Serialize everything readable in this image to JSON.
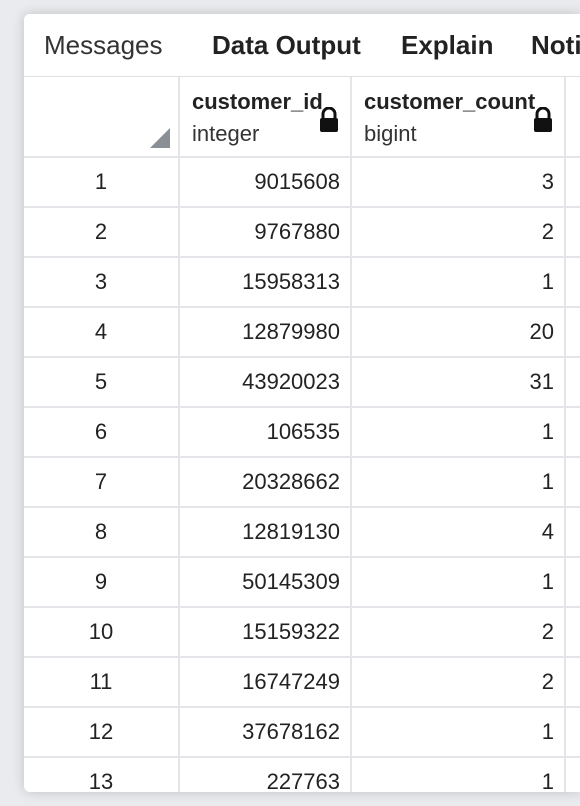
{
  "tabs": {
    "messages": "Messages",
    "data_output": "Data Output",
    "explain": "Explain",
    "notifications": "Noti"
  },
  "columns": [
    {
      "name": "customer_id",
      "type": "integer"
    },
    {
      "name": "customer_count",
      "type": "bigint"
    }
  ],
  "rows": [
    {
      "n": "1",
      "customer_id": "9015608",
      "customer_count": "3"
    },
    {
      "n": "2",
      "customer_id": "9767880",
      "customer_count": "2"
    },
    {
      "n": "3",
      "customer_id": "15958313",
      "customer_count": "1"
    },
    {
      "n": "4",
      "customer_id": "12879980",
      "customer_count": "20"
    },
    {
      "n": "5",
      "customer_id": "43920023",
      "customer_count": "31"
    },
    {
      "n": "6",
      "customer_id": "106535",
      "customer_count": "1"
    },
    {
      "n": "7",
      "customer_id": "20328662",
      "customer_count": "1"
    },
    {
      "n": "8",
      "customer_id": "12819130",
      "customer_count": "4"
    },
    {
      "n": "9",
      "customer_id": "50145309",
      "customer_count": "1"
    },
    {
      "n": "10",
      "customer_id": "15159322",
      "customer_count": "2"
    },
    {
      "n": "11",
      "customer_id": "16747249",
      "customer_count": "2"
    },
    {
      "n": "12",
      "customer_id": "37678162",
      "customer_count": "1"
    },
    {
      "n": "13",
      "customer_id": "227763",
      "customer_count": "1"
    }
  ],
  "icons": {
    "lock": "lock-icon",
    "corner": "resize-corner-icon"
  }
}
